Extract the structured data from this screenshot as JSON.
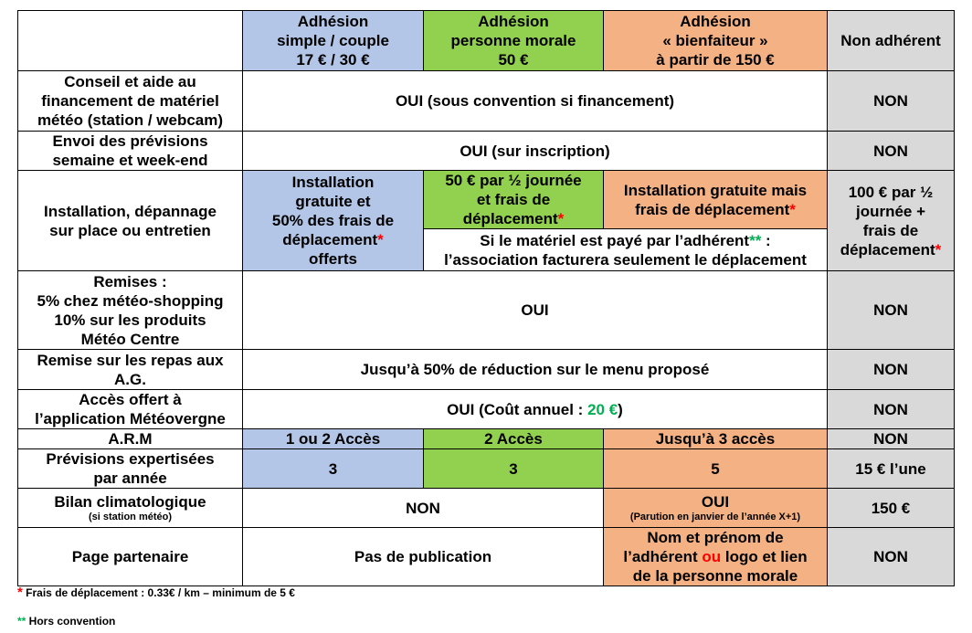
{
  "header": {
    "blue_l1": "Adhésion",
    "blue_l2": "simple / couple",
    "blue_l3": "17 € / 30 €",
    "green_l1": "Adhésion",
    "green_l2": "personne morale",
    "green_l3": "50 €",
    "orange_l1": "Adhésion",
    "orange_l2": "« bienfaiteur »",
    "orange_l3": "à partir de 150 €",
    "grey": "Non adhérent"
  },
  "rows": {
    "conseil": {
      "label_l1": "Conseil et aide au",
      "label_l2": "financement de matériel",
      "label_l3": "météo (station / webcam)",
      "members": "OUI (sous convention si financement)",
      "non": "NON"
    },
    "envoi": {
      "label_l1": "Envoi des prévisions",
      "label_l2": "semaine et week-end",
      "members": "OUI (sur inscription)",
      "non": "NON"
    },
    "installation": {
      "label_l1": "Installation, dépannage",
      "label_l2": "sur place ou entretien",
      "blue_l1": "Installation",
      "blue_l2": "gratuite et",
      "blue_l3": "50% des frais de",
      "blue_l4": "déplacement",
      "blue_l5": "offerts",
      "green_l1": "50 € par ½ journée",
      "green_l2": "et frais de",
      "green_l3": "déplacement",
      "orange_l1": "Installation gratuite mais",
      "orange_l2": "frais de déplacement",
      "note_l1": "Si le matériel est payé par l’adhérent",
      "note_l1_end": " :",
      "note_l2": "l’association facturera seulement le déplacement",
      "grey_l1": "100 € par ½",
      "grey_l2": "journée +",
      "grey_l3": "frais de",
      "grey_l4": "déplacement",
      "star": "*",
      "dstar": "**"
    },
    "remises": {
      "label_l1": "Remises :",
      "label_l2": "5% chez météo-shopping",
      "label_l3": "10% sur les produits",
      "label_l4": "Météo Centre",
      "members": "OUI",
      "non": "NON"
    },
    "repas": {
      "label_l1": "Remise sur les repas aux",
      "label_l2": "A.G.",
      "members": "Jusqu’à 50% de réduction sur le menu proposé",
      "non": "NON"
    },
    "acces": {
      "label_l1": "Accès offert à",
      "label_l2": "l’application Météovergne",
      "members_pre": "OUI (Coût annuel : ",
      "members_price": "20 €",
      "members_post": ")",
      "non": "NON"
    },
    "arm": {
      "label": "A.R.M",
      "blue": "1 ou 2 Accès",
      "green": "2 Accès",
      "orange": "Jusqu’à 3 accès",
      "grey": "NON"
    },
    "previsions": {
      "label_l1": "Prévisions expertisées",
      "label_l2": "par année",
      "blue": "3",
      "green": "3",
      "orange": "5",
      "grey": "15 € l’une"
    },
    "bilan": {
      "label_l1": "Bilan climatologique",
      "label_l2": "(si station météo)",
      "bg": "NON",
      "orange_l1": "OUI",
      "orange_l2": "(Parution en janvier de l’année X+1)",
      "grey": "150 €"
    },
    "page": {
      "label": "Page partenaire",
      "bg": "Pas de publication",
      "orange_l1": "Nom et prénom de",
      "orange_l2_pre": "l’adhérent ",
      "orange_l2_ou": "ou",
      "orange_l2_post": " logo et lien",
      "orange_l3": "de la personne morale",
      "grey": "NON"
    }
  },
  "footnotes": {
    "star": "*",
    "note1": " Frais de déplacement : 0.33€ / km – minimum de 5 €",
    "dstar": "**",
    "note2": " Hors convention"
  },
  "colors": {
    "blue": "#b4c6e7",
    "green": "#92d050",
    "orange": "#f4b183",
    "grey": "#d9d9d9",
    "red": "#ff0000",
    "green_text": "#00b050"
  }
}
